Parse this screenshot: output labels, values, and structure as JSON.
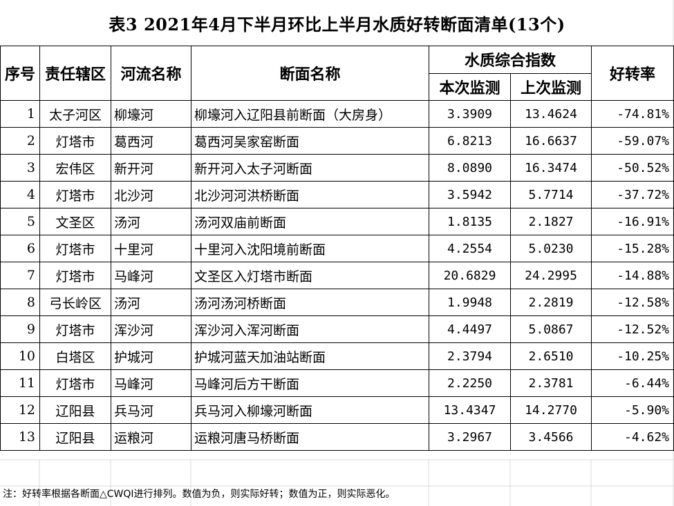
{
  "title": "表3  2021年4月下半月环比上半月水质好转断面清单(13个)",
  "headers": {
    "seq": "序号",
    "district": "责任辖区",
    "river": "河流名称",
    "section": "断面名称",
    "index_group": "水质综合指数",
    "current": "本次监测",
    "previous": "上次监测",
    "rate": "好转率"
  },
  "rows": [
    {
      "seq": "1",
      "district": "太子河区",
      "river": "柳壕河",
      "section": "柳壕河入辽阳县前断面（大房身）",
      "current": "3.3909",
      "previous": "13.4624",
      "rate": "-74.81%"
    },
    {
      "seq": "2",
      "district": "灯塔市",
      "river": "葛西河",
      "section": "葛西河吴家窑断面",
      "current": "6.8213",
      "previous": "16.6637",
      "rate": "-59.07%"
    },
    {
      "seq": "3",
      "district": "宏伟区",
      "river": "新开河",
      "section": "新开河入太子河断面",
      "current": "8.0890",
      "previous": "16.3474",
      "rate": "-50.52%"
    },
    {
      "seq": "4",
      "district": "灯塔市",
      "river": "北沙河",
      "section": "北沙河河洪桥断面",
      "current": "3.5942",
      "previous": "5.7714",
      "rate": "-37.72%"
    },
    {
      "seq": "5",
      "district": "文圣区",
      "river": "汤河",
      "section": "汤河双庙前断面",
      "current": "1.8135",
      "previous": "2.1827",
      "rate": "-16.91%"
    },
    {
      "seq": "6",
      "district": "灯塔市",
      "river": "十里河",
      "section": "十里河入沈阳境前断面",
      "current": "4.2554",
      "previous": "5.0230",
      "rate": "-15.28%"
    },
    {
      "seq": "7",
      "district": "灯塔市",
      "river": "马峰河",
      "section": "文圣区入灯塔市断面",
      "current": "20.6829",
      "previous": "24.2995",
      "rate": "-14.88%"
    },
    {
      "seq": "8",
      "district": "弓长岭区",
      "river": "汤河",
      "section": "汤河汤河桥断面",
      "current": "1.9948",
      "previous": "2.2819",
      "rate": "-12.58%"
    },
    {
      "seq": "9",
      "district": "灯塔市",
      "river": "浑沙河",
      "section": "浑沙河入浑河断面",
      "current": "4.4497",
      "previous": "5.0867",
      "rate": "-12.52%"
    },
    {
      "seq": "10",
      "district": "白塔区",
      "river": "护城河",
      "section": "护城河蓝天加油站断面",
      "current": "2.3794",
      "previous": "2.6510",
      "rate": "-10.25%"
    },
    {
      "seq": "11",
      "district": "灯塔市",
      "river": "马峰河",
      "section": "马峰河后方干断面",
      "current": "2.2250",
      "previous": "2.3781",
      "rate": "-6.44%"
    },
    {
      "seq": "12",
      "district": "辽阳县",
      "river": "兵马河",
      "section": "兵马河入柳壕河断面",
      "current": "13.4347",
      "previous": "14.2770",
      "rate": "-5.90%"
    },
    {
      "seq": "13",
      "district": "辽阳县",
      "river": "运粮河",
      "section": "运粮河唐马桥断面",
      "current": "3.2967",
      "previous": "3.4566",
      "rate": "-4.62%"
    }
  ],
  "note": "注：好转率根据各断面△CWQI进行排列。数值为负，则实际好转；数值为正，则实际恶化。"
}
